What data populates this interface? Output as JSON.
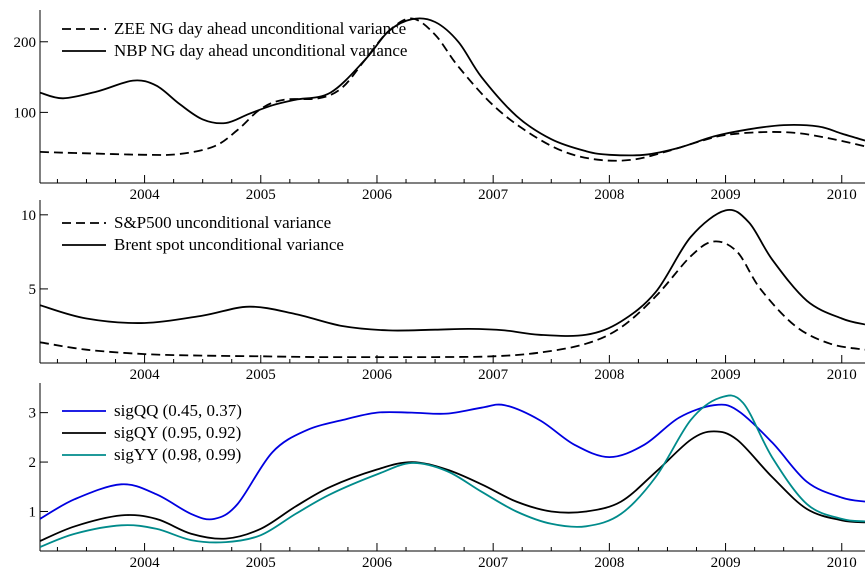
{
  "charts": [
    {
      "type": "line",
      "xlim": [
        2003.1,
        2010.2
      ],
      "ylim": [
        0,
        245
      ],
      "yticks": [
        100,
        200
      ],
      "xticks": [
        2004,
        2005,
        2006,
        2007,
        2008,
        2009,
        2010
      ],
      "xtick_labels": [
        "2004",
        "2005",
        "2006",
        "2007",
        "2008",
        "2009",
        "2010"
      ],
      "ytick_labels": [
        "100",
        "200"
      ],
      "series": [
        {
          "name": "ZEE NG day ahead unconditional variance",
          "style": "dashed",
          "color": "#000000",
          "x": [
            2003.1,
            2003.5,
            2004.0,
            2004.3,
            2004.6,
            2004.8,
            2005.0,
            2005.2,
            2005.5,
            2005.7,
            2005.9,
            2006.1,
            2006.3,
            2006.5,
            2006.7,
            2007.0,
            2007.3,
            2007.6,
            2007.9,
            2008.2,
            2008.5,
            2008.8,
            2009.0,
            2009.3,
            2009.6,
            2009.9,
            2010.2
          ],
          "y": [
            44,
            42,
            40,
            41,
            52,
            75,
            105,
            118,
            120,
            135,
            175,
            215,
            233,
            210,
            165,
            110,
            72,
            45,
            33,
            33,
            45,
            60,
            68,
            72,
            71,
            63,
            52
          ]
        },
        {
          "name": "NBP NG day ahead unconditional variance",
          "style": "solid",
          "color": "#000000",
          "x": [
            2003.1,
            2003.3,
            2003.6,
            2003.9,
            2004.1,
            2004.3,
            2004.5,
            2004.7,
            2004.9,
            2005.1,
            2005.3,
            2005.6,
            2005.9,
            2006.1,
            2006.3,
            2006.5,
            2006.7,
            2006.9,
            2007.2,
            2007.5,
            2007.8,
            2008.0,
            2008.3,
            2008.6,
            2008.9,
            2009.2,
            2009.5,
            2009.8,
            2010.0,
            2010.2
          ],
          "y": [
            128,
            120,
            130,
            145,
            138,
            112,
            90,
            85,
            98,
            110,
            118,
            128,
            175,
            215,
            232,
            228,
            200,
            150,
            95,
            62,
            45,
            40,
            40,
            50,
            66,
            76,
            82,
            80,
            70,
            60
          ]
        }
      ]
    },
    {
      "type": "line",
      "xlim": [
        2003.1,
        2010.2
      ],
      "ylim": [
        0,
        11
      ],
      "yticks": [
        5,
        10
      ],
      "xticks": [
        2004,
        2005,
        2006,
        2007,
        2008,
        2009,
        2010
      ],
      "xtick_labels": [
        "2004",
        "2005",
        "2006",
        "2007",
        "2008",
        "2009",
        "2010"
      ],
      "ytick_labels": [
        "5",
        "10"
      ],
      "series": [
        {
          "name": "S&P500 unconditional variance",
          "style": "dashed",
          "color": "#000000",
          "x": [
            2003.1,
            2003.5,
            2004.0,
            2004.5,
            2005.0,
            2005.5,
            2006.0,
            2006.5,
            2007.0,
            2007.4,
            2007.8,
            2008.1,
            2008.4,
            2008.7,
            2008.9,
            2009.1,
            2009.3,
            2009.6,
            2009.9,
            2010.2
          ],
          "y": [
            1.4,
            0.9,
            0.6,
            0.5,
            0.45,
            0.4,
            0.4,
            0.4,
            0.45,
            0.7,
            1.3,
            2.4,
            4.5,
            7.2,
            8.2,
            7.5,
            5.0,
            2.5,
            1.3,
            0.9
          ]
        },
        {
          "name": "Brent spot unconditional variance",
          "style": "solid",
          "color": "#000000",
          "x": [
            2003.1,
            2003.5,
            2004.0,
            2004.5,
            2004.9,
            2005.3,
            2005.7,
            2006.1,
            2006.5,
            2006.8,
            2007.1,
            2007.4,
            2007.8,
            2008.1,
            2008.4,
            2008.7,
            2009.0,
            2009.2,
            2009.4,
            2009.7,
            2010.0,
            2010.2
          ],
          "y": [
            3.9,
            3.0,
            2.7,
            3.2,
            3.8,
            3.3,
            2.5,
            2.2,
            2.25,
            2.3,
            2.2,
            1.9,
            1.9,
            2.8,
            4.8,
            8.5,
            10.3,
            9.5,
            7.0,
            4.2,
            3.0,
            2.6
          ]
        }
      ]
    },
    {
      "type": "line",
      "xlim": [
        2003.1,
        2010.2
      ],
      "ylim": [
        0.2,
        3.6
      ],
      "yticks": [
        1,
        2,
        3
      ],
      "xticks": [
        2004,
        2005,
        2006,
        2007,
        2008,
        2009,
        2010
      ],
      "xtick_labels": [
        "2004",
        "2005",
        "2006",
        "2007",
        "2008",
        "2009",
        "2010"
      ],
      "ytick_labels": [
        "1",
        "2",
        "3"
      ],
      "series": [
        {
          "name": "sigQQ (0.45, 0.37)",
          "style": "solid",
          "color": "#0000e0",
          "x": [
            2003.1,
            2003.4,
            2003.8,
            2004.1,
            2004.4,
            2004.6,
            2004.8,
            2005.1,
            2005.4,
            2005.7,
            2006.0,
            2006.3,
            2006.6,
            2006.9,
            2007.1,
            2007.4,
            2007.7,
            2008.0,
            2008.3,
            2008.6,
            2008.9,
            2009.1,
            2009.4,
            2009.7,
            2010.0,
            2010.2
          ],
          "y": [
            0.85,
            1.25,
            1.55,
            1.35,
            0.95,
            0.85,
            1.15,
            2.2,
            2.65,
            2.85,
            3.0,
            3.0,
            2.98,
            3.1,
            3.15,
            2.85,
            2.35,
            2.1,
            2.35,
            2.9,
            3.15,
            3.05,
            2.4,
            1.6,
            1.28,
            1.2
          ]
        },
        {
          "name": "sigQY (0.95, 0.92)",
          "style": "solid",
          "color": "#000000",
          "x": [
            2003.1,
            2003.4,
            2003.8,
            2004.1,
            2004.4,
            2004.7,
            2005.0,
            2005.3,
            2005.6,
            2006.0,
            2006.3,
            2006.6,
            2006.9,
            2007.2,
            2007.5,
            2007.8,
            2008.1,
            2008.4,
            2008.7,
            2008.9,
            2009.1,
            2009.4,
            2009.7,
            2010.0,
            2010.2
          ],
          "y": [
            0.4,
            0.7,
            0.92,
            0.85,
            0.55,
            0.45,
            0.65,
            1.1,
            1.5,
            1.85,
            2.0,
            1.85,
            1.55,
            1.2,
            1.0,
            1.0,
            1.2,
            1.8,
            2.45,
            2.62,
            2.45,
            1.7,
            1.05,
            0.82,
            0.78
          ]
        },
        {
          "name": "sigYY (0.98, 0.99)",
          "style": "solid",
          "color": "#008b8b",
          "x": [
            2003.1,
            2003.4,
            2003.8,
            2004.1,
            2004.4,
            2004.7,
            2005.0,
            2005.3,
            2005.6,
            2006.0,
            2006.3,
            2006.6,
            2006.9,
            2007.2,
            2007.5,
            2007.8,
            2008.1,
            2008.4,
            2008.7,
            2008.95,
            2009.15,
            2009.4,
            2009.7,
            2010.0,
            2010.2
          ],
          "y": [
            0.28,
            0.55,
            0.72,
            0.65,
            0.42,
            0.38,
            0.52,
            0.95,
            1.35,
            1.75,
            1.98,
            1.82,
            1.4,
            1.0,
            0.75,
            0.7,
            0.95,
            1.7,
            2.85,
            3.3,
            3.2,
            2.1,
            1.15,
            0.85,
            0.8
          ]
        }
      ]
    }
  ]
}
